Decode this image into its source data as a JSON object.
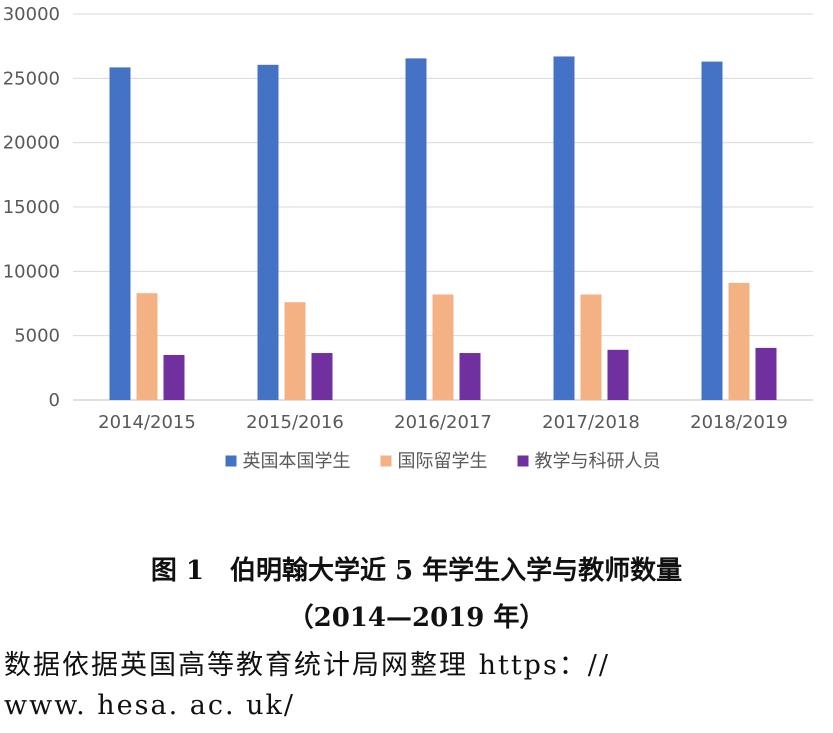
{
  "chart_data": {
    "type": "bar",
    "categories": [
      "2014/2015",
      "2015/2016",
      "2016/2017",
      "2017/2018",
      "2018/2019"
    ],
    "series": [
      {
        "name": "英国本国学生",
        "color": "#4472C4",
        "values": [
          25850,
          26050,
          26550,
          26700,
          26300
        ]
      },
      {
        "name": "国际留学生",
        "color": "#F4B183",
        "values": [
          8300,
          7600,
          8200,
          8200,
          9100
        ]
      },
      {
        "name": "教学与科研人员",
        "color": "#7030A0",
        "values": [
          3500,
          3650,
          3650,
          3900,
          4050
        ]
      }
    ],
    "ylim": [
      0,
      30000
    ],
    "yticks": [
      0,
      5000,
      10000,
      15000,
      20000,
      25000,
      30000
    ],
    "grid": true,
    "legend_position": "bottom"
  },
  "caption": {
    "title_line1": "图 1　伯明翰大学近 5 年学生入学与教师数量",
    "title_line2": "（2014—2019 年）"
  },
  "source": {
    "line1": "数据依据英国高等教育统计局网整理 https：//",
    "line2": "www. hesa. ac. uk/"
  }
}
